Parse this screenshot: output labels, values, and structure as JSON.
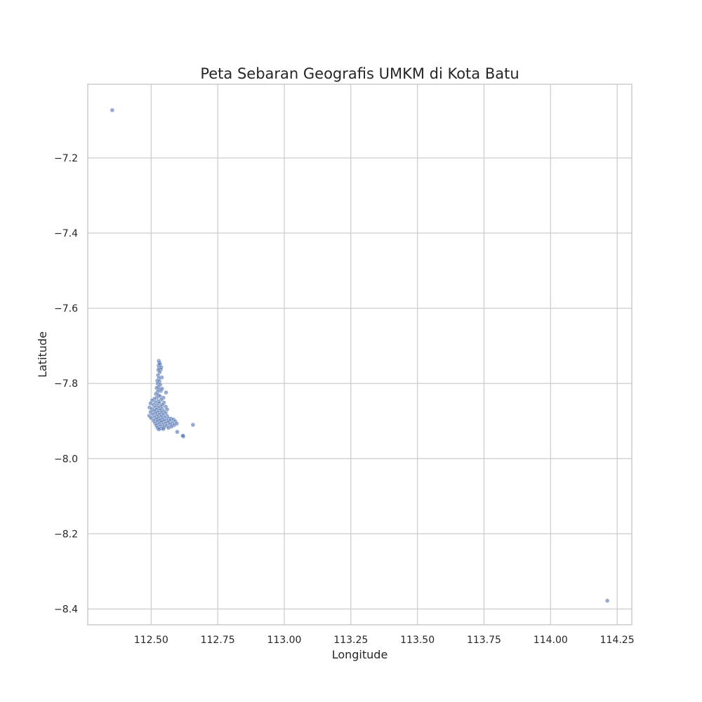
{
  "chart_data": {
    "type": "scatter",
    "title": "Peta Sebaran Geografis UMKM di Kota Batu",
    "xlabel": "Longitude",
    "ylabel": "Latitude",
    "xlim": [
      112.262,
      114.305
    ],
    "ylim": [
      -8.442,
      -7.004
    ],
    "xticks": [
      112.5,
      112.75,
      113.0,
      113.25,
      113.5,
      113.75,
      114.0,
      114.25
    ],
    "xtick_labels": [
      "112.50",
      "112.75",
      "113.00",
      "113.25",
      "113.50",
      "113.75",
      "114.00",
      "114.25"
    ],
    "yticks": [
      -7.2,
      -7.4,
      -7.6,
      -7.8,
      -8.0,
      -8.2,
      -8.4
    ],
    "ytick_labels": [
      "−7.2",
      "−7.4",
      "−7.6",
      "−7.8",
      "−8.0",
      "−8.2",
      "−8.4"
    ],
    "grid": true,
    "marker_color": "#4c72b0",
    "marker_alpha": 0.6,
    "points": [
      {
        "x": 112.354,
        "y": -7.073
      },
      {
        "x": 114.213,
        "y": -8.378
      },
      {
        "x": 112.529,
        "y": -7.74
      },
      {
        "x": 112.531,
        "y": -7.745
      },
      {
        "x": 112.528,
        "y": -7.752
      },
      {
        "x": 112.533,
        "y": -7.749
      },
      {
        "x": 112.53,
        "y": -7.758
      },
      {
        "x": 112.538,
        "y": -7.757
      },
      {
        "x": 112.536,
        "y": -7.763
      },
      {
        "x": 112.527,
        "y": -7.764
      },
      {
        "x": 112.532,
        "y": -7.77
      },
      {
        "x": 112.54,
        "y": -7.784
      },
      {
        "x": 112.526,
        "y": -7.778
      },
      {
        "x": 112.529,
        "y": -7.786
      },
      {
        "x": 112.523,
        "y": -7.793
      },
      {
        "x": 112.531,
        "y": -7.794
      },
      {
        "x": 112.525,
        "y": -7.801
      },
      {
        "x": 112.534,
        "y": -7.803
      },
      {
        "x": 112.528,
        "y": -7.809
      },
      {
        "x": 112.521,
        "y": -7.812
      },
      {
        "x": 112.53,
        "y": -7.816
      },
      {
        "x": 112.536,
        "y": -7.82
      },
      {
        "x": 112.524,
        "y": -7.822
      },
      {
        "x": 112.541,
        "y": -7.814
      },
      {
        "x": 112.556,
        "y": -7.824
      },
      {
        "x": 112.518,
        "y": -7.828
      },
      {
        "x": 112.527,
        "y": -7.831
      },
      {
        "x": 112.533,
        "y": -7.834
      },
      {
        "x": 112.546,
        "y": -7.838
      },
      {
        "x": 112.521,
        "y": -7.838
      },
      {
        "x": 112.512,
        "y": -7.841
      },
      {
        "x": 112.538,
        "y": -7.843
      },
      {
        "x": 112.504,
        "y": -7.845
      },
      {
        "x": 112.527,
        "y": -7.847
      },
      {
        "x": 112.516,
        "y": -7.85
      },
      {
        "x": 112.531,
        "y": -7.852
      },
      {
        "x": 112.548,
        "y": -7.851
      },
      {
        "x": 112.498,
        "y": -7.853
      },
      {
        "x": 112.543,
        "y": -7.857
      },
      {
        "x": 112.509,
        "y": -7.857
      },
      {
        "x": 112.522,
        "y": -7.858
      },
      {
        "x": 112.536,
        "y": -7.861
      },
      {
        "x": 112.555,
        "y": -7.862
      },
      {
        "x": 112.494,
        "y": -7.864
      },
      {
        "x": 112.515,
        "y": -7.864
      },
      {
        "x": 112.528,
        "y": -7.865
      },
      {
        "x": 112.503,
        "y": -7.868
      },
      {
        "x": 112.541,
        "y": -7.868
      },
      {
        "x": 112.56,
        "y": -7.869
      },
      {
        "x": 112.52,
        "y": -7.87
      },
      {
        "x": 112.533,
        "y": -7.872
      },
      {
        "x": 112.511,
        "y": -7.873
      },
      {
        "x": 112.548,
        "y": -7.874
      },
      {
        "x": 112.498,
        "y": -7.876
      },
      {
        "x": 112.525,
        "y": -7.877
      },
      {
        "x": 112.539,
        "y": -7.878
      },
      {
        "x": 112.555,
        "y": -7.879
      },
      {
        "x": 112.516,
        "y": -7.88
      },
      {
        "x": 112.506,
        "y": -7.882
      },
      {
        "x": 112.531,
        "y": -7.883
      },
      {
        "x": 112.545,
        "y": -7.884
      },
      {
        "x": 112.493,
        "y": -7.886
      },
      {
        "x": 112.522,
        "y": -7.887
      },
      {
        "x": 112.56,
        "y": -7.887
      },
      {
        "x": 112.537,
        "y": -7.889
      },
      {
        "x": 112.512,
        "y": -7.89
      },
      {
        "x": 112.551,
        "y": -7.891
      },
      {
        "x": 112.5,
        "y": -7.892
      },
      {
        "x": 112.527,
        "y": -7.893
      },
      {
        "x": 112.566,
        "y": -7.893
      },
      {
        "x": 112.542,
        "y": -7.895
      },
      {
        "x": 112.575,
        "y": -7.894
      },
      {
        "x": 112.519,
        "y": -7.896
      },
      {
        "x": 112.584,
        "y": -7.896
      },
      {
        "x": 112.533,
        "y": -7.898
      },
      {
        "x": 112.558,
        "y": -7.898
      },
      {
        "x": 112.509,
        "y": -7.899
      },
      {
        "x": 112.548,
        "y": -7.9
      },
      {
        "x": 112.57,
        "y": -7.9
      },
      {
        "x": 112.591,
        "y": -7.901
      },
      {
        "x": 112.524,
        "y": -7.902
      },
      {
        "x": 112.538,
        "y": -7.903
      },
      {
        "x": 112.563,
        "y": -7.904
      },
      {
        "x": 112.58,
        "y": -7.905
      },
      {
        "x": 112.515,
        "y": -7.906
      },
      {
        "x": 112.553,
        "y": -7.907
      },
      {
        "x": 112.596,
        "y": -7.907
      },
      {
        "x": 112.529,
        "y": -7.908
      },
      {
        "x": 112.571,
        "y": -7.909
      },
      {
        "x": 112.543,
        "y": -7.91
      },
      {
        "x": 112.586,
        "y": -7.911
      },
      {
        "x": 112.52,
        "y": -7.912
      },
      {
        "x": 112.558,
        "y": -7.913
      },
      {
        "x": 112.534,
        "y": -7.914
      },
      {
        "x": 112.576,
        "y": -7.915
      },
      {
        "x": 112.548,
        "y": -7.916
      },
      {
        "x": 112.524,
        "y": -7.918
      },
      {
        "x": 112.565,
        "y": -7.918
      },
      {
        "x": 112.538,
        "y": -7.92
      },
      {
        "x": 112.529,
        "y": -7.922
      },
      {
        "x": 112.546,
        "y": -7.921
      },
      {
        "x": 112.598,
        "y": -7.929
      },
      {
        "x": 112.621,
        "y": -7.941
      },
      {
        "x": 112.619,
        "y": -7.939
      },
      {
        "x": 112.657,
        "y": -7.91
      }
    ]
  }
}
